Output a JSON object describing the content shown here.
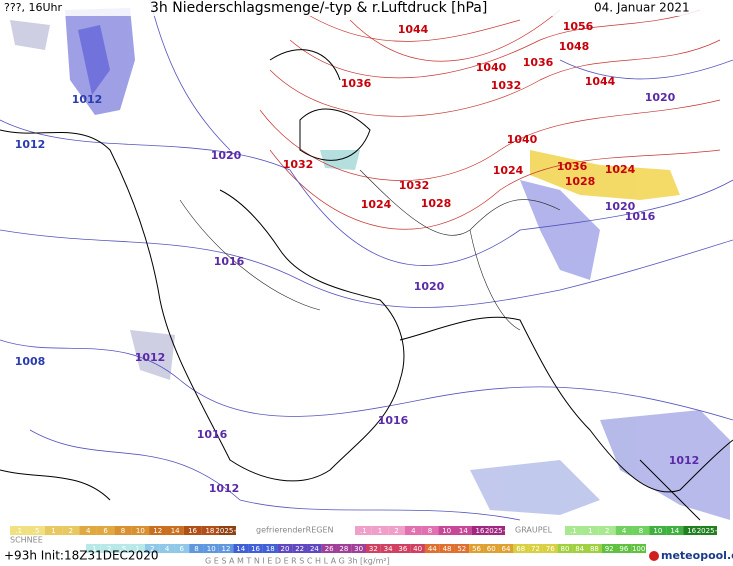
{
  "header": {
    "time": "???, 16Uhr",
    "title": "3h Niederschlagsmenge/-typ & r.Luftdruck [hPa]",
    "date": "04. Januar 2021"
  },
  "isobar_labels": [
    {
      "value": 1044,
      "color": "#c8000a"
    },
    {
      "value": 1056,
      "color": "#c8000a"
    },
    {
      "value": 1048,
      "color": "#c8000a"
    },
    {
      "value": 1040,
      "color": "#c8000a"
    },
    {
      "value": 1036,
      "color": "#c8000a"
    },
    {
      "value": 1032,
      "color": "#c8000a"
    },
    {
      "value": 1044,
      "color": "#c8000a"
    },
    {
      "value": 1036,
      "color": "#c8000a"
    },
    {
      "value": 1020,
      "color": "#5a2aa8"
    },
    {
      "value": 1012,
      "color": "#2a3cb0"
    },
    {
      "value": 1020,
      "color": "#5a2aa8"
    },
    {
      "value": 1032,
      "color": "#c8000a"
    },
    {
      "value": 1040,
      "color": "#c8000a"
    },
    {
      "value": 1036,
      "color": "#c8000a"
    },
    {
      "value": 1024,
      "color": "#c8000a"
    },
    {
      "value": 1024,
      "color": "#c8000a"
    },
    {
      "value": 1028,
      "color": "#c8000a"
    },
    {
      "value": 1032,
      "color": "#c8000a"
    },
    {
      "value": 1028,
      "color": "#c8000a"
    },
    {
      "value": 1024,
      "color": "#c8000a"
    },
    {
      "value": 1020,
      "color": "#5a2aa8"
    },
    {
      "value": 1016,
      "color": "#5a2aa8"
    },
    {
      "value": 1016,
      "color": "#5a2aa8"
    },
    {
      "value": 1020,
      "color": "#5a2aa8"
    },
    {
      "value": 1012,
      "color": "#5a2aa8"
    },
    {
      "value": 1008,
      "color": "#2a3cb0"
    },
    {
      "value": 1016,
      "color": "#5a2aa8"
    },
    {
      "value": 1016,
      "color": "#5a2aa8"
    },
    {
      "value": 1012,
      "color": "#5a2aa8"
    },
    {
      "value": 1012,
      "color": "#5a2aa8"
    },
    {
      "value": 1012,
      "color": "#2a3cb0"
    }
  ],
  "legend": {
    "snow": {
      "name": "SCHNEE",
      "steps": [
        ".1",
        ".5",
        "1",
        "2",
        "4",
        "6",
        "8",
        "10",
        "12",
        "14",
        "16",
        "18",
        "2025+"
      ]
    },
    "freezing_rain": {
      "name": "gefrierenderREGEN",
      "steps": [
        ".1",
        "1",
        "2",
        "4",
        "8",
        "10",
        "14",
        "16",
        "2025+"
      ]
    },
    "graupel": {
      "name": "GRAUPEL",
      "steps": [
        ".1",
        "1",
        "2",
        "4",
        "8",
        "10",
        "14",
        "16",
        "2025+"
      ]
    },
    "total": {
      "name": "G E S A M T N I E D E R S C H L A G   3h  [kg/m²]",
      "steps": [
        ".1",
        ".2",
        ".5",
        "1",
        "2",
        "4",
        "6",
        "8",
        "10",
        "12",
        "14",
        "16",
        "18",
        "20",
        "22",
        "24",
        "26",
        "28",
        "30",
        "32",
        "34",
        "36",
        "40",
        "44",
        "48",
        "52",
        "56",
        "60",
        "64",
        "68",
        "72",
        "76",
        "80",
        "84",
        "88",
        "92",
        "96",
        "100"
      ]
    }
  },
  "footer": {
    "run": "+93h Init:18Z31DEC2020",
    "brand": "meteopool.org"
  }
}
